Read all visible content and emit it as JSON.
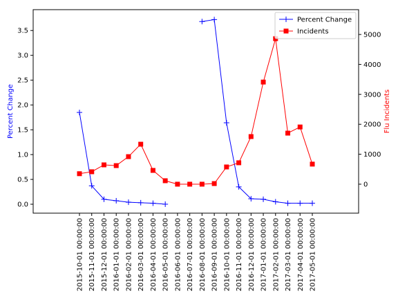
{
  "chart_data": {
    "type": "line",
    "categories": [
      "2015-10-01 00:00:00",
      "2015-11-01 00:00:00",
      "2015-12-01 00:00:00",
      "2016-01-01 00:00:00",
      "2016-02-01 00:00:00",
      "2016-03-01 00:00:00",
      "2016-04-01 00:00:00",
      "2016-05-01 00:00:00",
      "2016-06-01 00:00:00",
      "2016-07-01 00:00:00",
      "2016-08-01 00:00:00",
      "2016-09-01 00:00:00",
      "2016-10-01 00:00:00",
      "2016-11-01 00:00:00",
      "2016-12-01 00:00:00",
      "2017-01-01 00:00:00",
      "2017-02-01 00:00:00",
      "2017-03-01 00:00:00",
      "2017-04-01 00:00:00",
      "2017-05-01 00:00:00"
    ],
    "series": [
      {
        "name": "Percent Change",
        "color": "#0000ff",
        "marker": "+",
        "values": [
          1.85,
          0.37,
          0.1,
          0.07,
          0.04,
          0.03,
          0.02,
          0.0,
          null,
          null,
          3.68,
          3.72,
          1.64,
          0.35,
          0.11,
          0.1,
          0.05,
          0.02,
          0.02,
          0.02
        ]
      },
      {
        "name": "Incidents",
        "color": "#ff0000",
        "marker": "s",
        "axis": "y2",
        "values": [
          350,
          415,
          645,
          620,
          920,
          1335,
          460,
          115,
          0,
          0,
          0,
          20,
          575,
          715,
          1590,
          3410,
          4860,
          1705,
          1910,
          670
        ]
      }
    ],
    "ylabel": "Percent Change",
    "ylabel_color": "#0000ff",
    "y2label": "Flu Incidents",
    "y2label_color": "#ff0000",
    "ylim": [
      -0.18,
      3.92
    ],
    "yticks": [
      {
        "value": 0,
        "label": "0.0"
      },
      0.5,
      {
        "value": 1,
        "label": "1.0"
      },
      1.5,
      {
        "value": 2,
        "label": "2.0"
      },
      2.5,
      {
        "value": 3,
        "label": "3.0"
      },
      3.5
    ],
    "y2lim": [
      -968,
      5829
    ],
    "y2ticks": [
      0,
      1000,
      2000,
      3000,
      4000,
      5000
    ],
    "legend": "upper right"
  }
}
